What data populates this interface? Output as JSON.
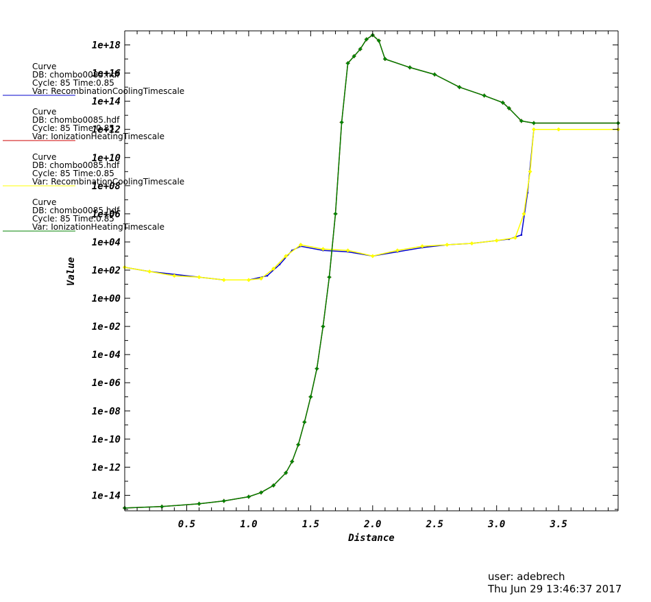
{
  "chart_data": {
    "type": "line",
    "xlabel": "Distance",
    "ylabel": "Value",
    "y_scale": "log",
    "xlim": [
      0.0,
      3.98
    ],
    "ylim_log10": [
      -15.1,
      19.0
    ],
    "x_ticks": [
      "0.5",
      "1.0",
      "1.5",
      "2.0",
      "2.5",
      "3.0",
      "3.5"
    ],
    "x_tick_values": [
      0.5,
      1.0,
      1.5,
      2.0,
      2.5,
      3.0,
      3.5
    ],
    "y_ticks": [
      "1e+18",
      "1e+16",
      "1e+14",
      "1e+12",
      "1e+10",
      "1e+08",
      "1e+06",
      "1e+04",
      "1e+02",
      "1e+00",
      "1e-02",
      "1e-04",
      "1e-06",
      "1e-08",
      "1e-10",
      "1e-12",
      "1e-14"
    ],
    "y_tick_exponents": [
      18,
      16,
      14,
      12,
      10,
      8,
      6,
      4,
      2,
      0,
      -2,
      -4,
      -6,
      -8,
      -10,
      -12,
      -14
    ],
    "grid": false,
    "legend_position": "left",
    "series": [
      {
        "name": "RecombinationCoolingTimescale",
        "color": "#0000cc",
        "marker": "dot",
        "points_log10": [
          [
            0.0,
            2.2
          ],
          [
            0.2,
            1.9
          ],
          [
            0.4,
            1.7
          ],
          [
            0.6,
            1.5
          ],
          [
            0.8,
            1.3
          ],
          [
            1.0,
            1.3
          ],
          [
            1.15,
            1.6
          ],
          [
            1.25,
            2.4
          ],
          [
            1.35,
            3.4
          ],
          [
            1.42,
            3.7
          ],
          [
            1.6,
            3.4
          ],
          [
            1.8,
            3.3
          ],
          [
            2.0,
            3.0
          ],
          [
            2.2,
            3.3
          ],
          [
            2.4,
            3.6
          ],
          [
            2.6,
            3.8
          ],
          [
            2.8,
            3.9
          ],
          [
            3.0,
            4.1
          ],
          [
            3.1,
            4.2
          ],
          [
            3.2,
            4.5
          ],
          [
            3.25,
            7.5
          ],
          [
            3.3,
            12.0
          ],
          [
            3.5,
            12.0
          ],
          [
            3.98,
            12.0
          ]
        ]
      },
      {
        "name": "IonizationHeatingTimescale",
        "color": "#cc0000",
        "marker": "plus",
        "points_log10": [
          [
            0.0,
            -14.9
          ],
          [
            0.3,
            -14.8
          ],
          [
            0.6,
            -14.6
          ],
          [
            0.8,
            -14.4
          ],
          [
            1.0,
            -14.1
          ],
          [
            1.1,
            -13.8
          ],
          [
            1.2,
            -13.3
          ],
          [
            1.3,
            -12.4
          ],
          [
            1.35,
            -11.6
          ],
          [
            1.4,
            -10.4
          ],
          [
            1.45,
            -8.8
          ],
          [
            1.5,
            -7.0
          ],
          [
            1.55,
            -5.0
          ],
          [
            1.6,
            -2.0
          ],
          [
            1.65,
            1.5
          ],
          [
            1.7,
            6.0
          ],
          [
            1.75,
            12.5
          ],
          [
            1.8,
            16.7
          ],
          [
            1.85,
            17.2
          ],
          [
            1.9,
            17.7
          ],
          [
            1.95,
            18.4
          ],
          [
            2.0,
            18.7
          ],
          [
            2.05,
            18.3
          ],
          [
            2.1,
            17.0
          ],
          [
            2.3,
            16.4
          ],
          [
            2.5,
            15.9
          ],
          [
            2.7,
            15.0
          ],
          [
            2.9,
            14.4
          ],
          [
            3.05,
            13.9
          ],
          [
            3.1,
            13.5
          ],
          [
            3.2,
            12.6
          ],
          [
            3.3,
            12.45
          ],
          [
            3.98,
            12.45
          ]
        ]
      },
      {
        "name": "RecombinationCoolingTimescale",
        "color": "#ffff00",
        "marker": "diamond",
        "points_log10": [
          [
            0.0,
            2.2
          ],
          [
            0.2,
            1.9
          ],
          [
            0.4,
            1.6
          ],
          [
            0.6,
            1.5
          ],
          [
            0.8,
            1.3
          ],
          [
            1.0,
            1.3
          ],
          [
            1.1,
            1.4
          ],
          [
            1.2,
            2.1
          ],
          [
            1.3,
            3.0
          ],
          [
            1.42,
            3.8
          ],
          [
            1.6,
            3.5
          ],
          [
            1.8,
            3.4
          ],
          [
            2.0,
            3.0
          ],
          [
            2.2,
            3.4
          ],
          [
            2.4,
            3.7
          ],
          [
            2.6,
            3.8
          ],
          [
            2.8,
            3.9
          ],
          [
            3.0,
            4.1
          ],
          [
            3.15,
            4.3
          ],
          [
            3.22,
            6.0
          ],
          [
            3.27,
            9.0
          ],
          [
            3.3,
            12.0
          ],
          [
            3.5,
            12.0
          ],
          [
            3.98,
            12.0
          ]
        ]
      },
      {
        "name": "IonizationHeatingTimescale",
        "color": "#008000",
        "marker": "diamond",
        "points_log10": [
          [
            0.0,
            -14.9
          ],
          [
            0.3,
            -14.8
          ],
          [
            0.6,
            -14.6
          ],
          [
            0.8,
            -14.4
          ],
          [
            1.0,
            -14.1
          ],
          [
            1.1,
            -13.8
          ],
          [
            1.2,
            -13.3
          ],
          [
            1.3,
            -12.4
          ],
          [
            1.35,
            -11.6
          ],
          [
            1.4,
            -10.4
          ],
          [
            1.45,
            -8.8
          ],
          [
            1.5,
            -7.0
          ],
          [
            1.55,
            -5.0
          ],
          [
            1.6,
            -2.0
          ],
          [
            1.65,
            1.5
          ],
          [
            1.7,
            6.0
          ],
          [
            1.75,
            12.5
          ],
          [
            1.8,
            16.7
          ],
          [
            1.85,
            17.2
          ],
          [
            1.9,
            17.7
          ],
          [
            1.95,
            18.4
          ],
          [
            2.0,
            18.7
          ],
          [
            2.05,
            18.3
          ],
          [
            2.1,
            17.0
          ],
          [
            2.3,
            16.4
          ],
          [
            2.5,
            15.9
          ],
          [
            2.7,
            15.0
          ],
          [
            2.9,
            14.4
          ],
          [
            3.05,
            13.9
          ],
          [
            3.1,
            13.5
          ],
          [
            3.2,
            12.6
          ],
          [
            3.3,
            12.45
          ],
          [
            3.98,
            12.45
          ]
        ]
      }
    ]
  },
  "legend": [
    {
      "color": "#0000cc",
      "lines": [
        "Curve",
        "DB: chombo0085.hdf",
        "Cycle: 85       Time:0.85",
        "Var: RecombinationCoolingTimescale"
      ]
    },
    {
      "color": "#cc0000",
      "lines": [
        "Curve",
        "DB: chombo0085.hdf",
        "Cycle: 85       Time:0.85",
        "Var: IonizationHeatingTimescale"
      ]
    },
    {
      "color": "#ffff00",
      "lines": [
        "Curve",
        "DB: chombo0085.hdf",
        "Cycle: 85       Time:0.85",
        "Var: RecombinationCoolingTimescale"
      ]
    },
    {
      "color": "#008000",
      "lines": [
        "Curve",
        "DB: chombo0085.hdf",
        "Cycle: 85       Time:0.85",
        "Var: IonizationHeatingTimescale"
      ]
    }
  ],
  "footer": {
    "user": "user: adebrech",
    "timestamp": "Thu Jun 29 13:46:37 2017"
  }
}
